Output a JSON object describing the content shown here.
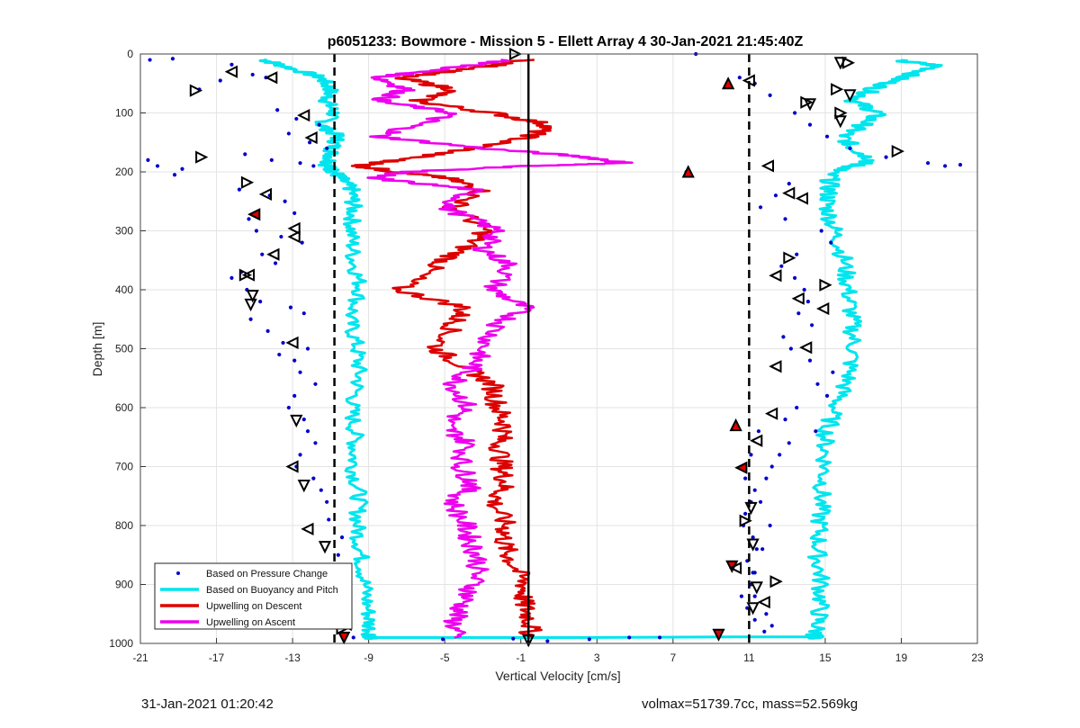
{
  "chart_data": {
    "type": "scatter",
    "title": "p6051233: Bowmore - Mission 5 - Ellett Array 4 30-Jan-2021 21:45:40Z",
    "xlabel": "Vertical Velocity [cm/s]",
    "ylabel": "Depth [m]",
    "xlim": [
      -21,
      23
    ],
    "ylim": [
      0,
      1000
    ],
    "y_reversed": true,
    "xticks": [
      "-21",
      "-17",
      "-13",
      "-9",
      "-5",
      "-1",
      "3",
      "7",
      "11",
      "15",
      "19",
      "23"
    ],
    "yticks": [
      "0",
      "100",
      "200",
      "300",
      "400",
      "500",
      "600",
      "700",
      "800",
      "900",
      "1000"
    ],
    "grid": true,
    "legend_position": "bottom-left",
    "reference_lines": [
      {
        "style": "dashed",
        "x": -10.8
      },
      {
        "style": "solid",
        "x": -0.6
      },
      {
        "style": "dashed",
        "x": 11
      }
    ],
    "series": [
      {
        "name": "Based on Pressure Change",
        "kind": "points",
        "color": "#0000cc",
        "x": [
          -20.5,
          -19.3,
          -16.2,
          -15.1,
          -17.9,
          -16.8,
          -14.4,
          -13.8,
          -12.8,
          -11.6,
          -13.2,
          -12.1,
          -11.2,
          -15.5,
          -14.1,
          -12.6,
          -11.9,
          -18.8,
          -20.6,
          -20.1,
          -19.2,
          -15.8,
          -14.2,
          -13.4,
          -12.9,
          -15.3,
          -14.9,
          -13.6,
          -12.5,
          -14.6,
          -13.9,
          -15.7,
          -16.2,
          -15.4,
          -14.7,
          -13.1,
          -12.4,
          -15.2,
          -14.3,
          -13.5,
          -12.2,
          -13.7,
          -12.9,
          -12.6,
          -11.8,
          -12.9,
          -13.2,
          -12.4,
          -12.2,
          -11.8,
          -12.6,
          -12.8,
          -11.9,
          -11.5,
          -11.2,
          -11.1,
          -10.4,
          -10.6,
          -10.2,
          -10.1,
          -9.8,
          -5.1,
          -1.4,
          0.4,
          2.6,
          4.7,
          6.3,
          8.2,
          7.7,
          10.5,
          11.3,
          12.1,
          13.4,
          14.2,
          15.1,
          16.3,
          18.2,
          20.4,
          21.3,
          22.1,
          13.1,
          12.4,
          11.6,
          12.9,
          14.8,
          15.3,
          13.5,
          12.7,
          13.4,
          13.9,
          14.1,
          13.6,
          14.3,
          12.8,
          13.2,
          14.2,
          15.4,
          14.6,
          15.1,
          13.5,
          12.9,
          14.5,
          13.1,
          12.6,
          12.2,
          11.9,
          11.3,
          11.1,
          10.8,
          10.7,
          11.2,
          11.4,
          10.9,
          11.3,
          11.1,
          10.6,
          10.9,
          11.3,
          11.8,
          11.5,
          11.1,
          10.8,
          11.6,
          12.1,
          11.7,
          11.2,
          11.3,
          11.9,
          12.2
        ],
        "y": [
          10,
          8,
          18,
          35,
          60,
          45,
          40,
          95,
          110,
          120,
          135,
          150,
          160,
          170,
          180,
          185,
          190,
          195,
          180,
          190,
          205,
          230,
          240,
          250,
          270,
          280,
          300,
          310,
          320,
          340,
          355,
          370,
          380,
          400,
          420,
          430,
          440,
          450,
          470,
          490,
          500,
          510,
          520,
          540,
          560,
          580,
          600,
          620,
          640,
          660,
          680,
          700,
          720,
          740,
          760,
          790,
          820,
          850,
          900,
          950,
          990,
          993,
          992,
          996,
          993,
          990,
          990,
          0,
          200,
          40,
          50,
          70,
          100,
          120,
          140,
          160,
          175,
          185,
          190,
          188,
          220,
          240,
          260,
          280,
          300,
          320,
          340,
          360,
          380,
          400,
          420,
          440,
          460,
          480,
          500,
          520,
          540,
          560,
          580,
          600,
          620,
          640,
          660,
          680,
          700,
          720,
          740,
          760,
          780,
          800,
          820,
          840,
          860,
          880,
          900,
          920,
          940,
          960,
          980,
          640,
          680,
          720,
          760,
          800,
          840,
          880,
          920,
          950,
          970
        ]
      },
      {
        "name": "Based on Buoyancy and Pitch",
        "kind": "line",
        "color": "#00e5ee"
      },
      {
        "name": "Upwelling on Descent",
        "kind": "line",
        "color": "#dd0000"
      },
      {
        "name": "Upwelling on Ascent",
        "kind": "line",
        "color": "#ee00ee"
      }
    ],
    "profiles": [
      {
        "series": "Based on Buoyancy and Pitch",
        "y": [
          10,
          20,
          40,
          60,
          80,
          100,
          120,
          140,
          160,
          180,
          190,
          200,
          210,
          230,
          260,
          300,
          350,
          400,
          450,
          500,
          550,
          600,
          650,
          700,
          750,
          800,
          850,
          900,
          950,
          985,
          992
        ],
        "x": [
          -14.5,
          -13.5,
          -11.5,
          -11,
          -11.2,
          -10.8,
          -11.5,
          -10.6,
          -10.9,
          -11,
          -11.2,
          -10.8,
          -10.5,
          -9.9,
          -9.8,
          -9.9,
          -9.8,
          -9.4,
          -10,
          -9.6,
          -9.5,
          -9.9,
          -9.7,
          -9.8,
          -9.5,
          -9.6,
          -9.4,
          -9.2,
          -9.0,
          -8.9,
          -8.8
        ],
        "amp": 0.45
      },
      {
        "series": "Based on Buoyancy and Pitch",
        "y": [
          10,
          20,
          40,
          60,
          80,
          100,
          120,
          140,
          160,
          180,
          190,
          200,
          230,
          260,
          300,
          350,
          400,
          450,
          500,
          550,
          600,
          650,
          700,
          750,
          800,
          850,
          900,
          950,
          985,
          992
        ],
        "x": [
          18.5,
          21,
          19,
          17.5,
          16.5,
          17.8,
          17,
          15.9,
          16.5,
          17.5,
          16.5,
          15.3,
          15.2,
          15.1,
          15.5,
          16,
          16.2,
          16.4,
          16.5,
          16.2,
          15.5,
          15,
          15,
          14.8,
          14.7,
          14.6,
          14.8,
          14.7,
          14.5,
          14.4
        ],
        "amp": 0.5
      },
      {
        "series": "Based on Buoyancy and Pitch",
        "y": [
          990,
          990,
          989,
          989
        ],
        "x": [
          -9,
          1,
          10,
          14.5
        ],
        "amp": 0
      },
      {
        "series": "Upwelling on Descent",
        "y": [
          10,
          25,
          40,
          60,
          80,
          100,
          120,
          140,
          160,
          180,
          190,
          200,
          210,
          230,
          260,
          300,
          330,
          360,
          400,
          430,
          460,
          500,
          530,
          560,
          600,
          630,
          660,
          700,
          730,
          760,
          800,
          830,
          860,
          900,
          930,
          960,
          990
        ],
        "x": [
          -0.8,
          -3.5,
          -7.5,
          -4.5,
          -6.5,
          -2.5,
          0.5,
          -0.5,
          -3.5,
          -7.5,
          -9.5,
          -7.5,
          -5,
          -3,
          -4.5,
          -2.8,
          -4,
          -5.5,
          -7.5,
          -4,
          -4.5,
          -5.5,
          -4,
          -2.5,
          -2.2,
          -1.8,
          -2.1,
          -2,
          -1.8,
          -2.4,
          -1.8,
          -1.9,
          -1.5,
          -0.8,
          -0.9,
          -0.5,
          -0.5
        ],
        "amp": 0.6
      },
      {
        "series": "Upwelling on Ascent",
        "y": [
          10,
          25,
          40,
          60,
          80,
          100,
          120,
          140,
          160,
          175,
          185,
          190,
          200,
          210,
          230,
          260,
          300,
          330,
          360,
          400,
          430,
          460,
          500,
          530,
          560,
          600,
          630,
          660,
          700,
          730,
          760,
          800,
          830,
          860,
          900,
          930,
          960,
          990
        ],
        "x": [
          -1.5,
          -5,
          -8.5,
          -7,
          -8.5,
          -4.5,
          -6.5,
          -8.5,
          -3,
          2.5,
          4.5,
          -0.5,
          -7,
          -9,
          -3.5,
          -5,
          -2.2,
          -3,
          -1.5,
          -2.5,
          -0.8,
          -2.2,
          -3,
          -3.5,
          -4.5,
          -3.8,
          -5,
          -3.8,
          -4.2,
          -3.5,
          -4.6,
          -3.9,
          -3.6,
          -3.2,
          -3.5,
          -4,
          -4.5,
          -4.5
        ],
        "amp": 0.6
      }
    ],
    "markers": [
      {
        "x": -16.2,
        "y": 30,
        "dir": "left",
        "fill": "none"
      },
      {
        "x": -14.1,
        "y": 40,
        "dir": "left",
        "fill": "none"
      },
      {
        "x": -18.1,
        "y": 62,
        "dir": "right",
        "fill": "none"
      },
      {
        "x": -12.4,
        "y": 104,
        "dir": "left",
        "fill": "none"
      },
      {
        "x": -12.0,
        "y": 142,
        "dir": "left",
        "fill": "none"
      },
      {
        "x": -17.8,
        "y": 175,
        "dir": "right",
        "fill": "none"
      },
      {
        "x": -15.4,
        "y": 218,
        "dir": "right",
        "fill": "none"
      },
      {
        "x": -14.4,
        "y": 238,
        "dir": "left",
        "fill": "none"
      },
      {
        "x": -15.0,
        "y": 272,
        "dir": "left",
        "fill": "red"
      },
      {
        "x": -12.9,
        "y": 296,
        "dir": "left",
        "fill": "none"
      },
      {
        "x": -12.9,
        "y": 310,
        "dir": "left",
        "fill": "none"
      },
      {
        "x": -14.0,
        "y": 340,
        "dir": "left",
        "fill": "none"
      },
      {
        "x": -15.3,
        "y": 375,
        "dir": "left",
        "fill": "none"
      },
      {
        "x": -15.5,
        "y": 375,
        "dir": "right",
        "fill": "none"
      },
      {
        "x": -15.1,
        "y": 410,
        "dir": "down",
        "fill": "none"
      },
      {
        "x": -15.2,
        "y": 425,
        "dir": "down",
        "fill": "none"
      },
      {
        "x": -13.0,
        "y": 490,
        "dir": "left",
        "fill": "none"
      },
      {
        "x": -12.8,
        "y": 622,
        "dir": "down",
        "fill": "none"
      },
      {
        "x": -13.0,
        "y": 700,
        "dir": "left",
        "fill": "none"
      },
      {
        "x": -12.4,
        "y": 732,
        "dir": "down",
        "fill": "none"
      },
      {
        "x": -12.2,
        "y": 806,
        "dir": "left",
        "fill": "none"
      },
      {
        "x": -11.3,
        "y": 836,
        "dir": "down",
        "fill": "none"
      },
      {
        "x": -11.0,
        "y": 885,
        "dir": "left",
        "fill": "none"
      },
      {
        "x": -10.8,
        "y": 940,
        "dir": "down",
        "fill": "none"
      },
      {
        "x": -10.2,
        "y": 968,
        "dir": "left",
        "fill": "none"
      },
      {
        "x": -10.4,
        "y": 975,
        "dir": "right",
        "fill": "none"
      },
      {
        "x": -10.3,
        "y": 990,
        "dir": "down",
        "fill": "red"
      },
      {
        "x": -1.3,
        "y": 0,
        "dir": "right",
        "fill": "none"
      },
      {
        "x": -0.6,
        "y": 995,
        "dir": "down",
        "fill": "none"
      },
      {
        "x": 7.8,
        "y": 200,
        "dir": "up",
        "fill": "red"
      },
      {
        "x": 9.9,
        "y": 50,
        "dir": "up",
        "fill": "red"
      },
      {
        "x": 11.0,
        "y": 45,
        "dir": "left",
        "fill": "none"
      },
      {
        "x": 15.8,
        "y": 15,
        "dir": "down",
        "fill": "none"
      },
      {
        "x": 16.2,
        "y": 15,
        "dir": "right",
        "fill": "none"
      },
      {
        "x": 15.6,
        "y": 60,
        "dir": "right",
        "fill": "none"
      },
      {
        "x": 16.3,
        "y": 70,
        "dir": "down",
        "fill": "none"
      },
      {
        "x": 14.0,
        "y": 82,
        "dir": "right",
        "fill": "none"
      },
      {
        "x": 14.2,
        "y": 85,
        "dir": "down",
        "fill": "none"
      },
      {
        "x": 15.8,
        "y": 100,
        "dir": "right",
        "fill": "none"
      },
      {
        "x": 15.8,
        "y": 114,
        "dir": "down",
        "fill": "none"
      },
      {
        "x": 12.0,
        "y": 190,
        "dir": "left",
        "fill": "none"
      },
      {
        "x": 18.8,
        "y": 165,
        "dir": "right",
        "fill": "none"
      },
      {
        "x": 13.1,
        "y": 236,
        "dir": "left",
        "fill": "none"
      },
      {
        "x": 13.8,
        "y": 245,
        "dir": "left",
        "fill": "none"
      },
      {
        "x": 13.1,
        "y": 346,
        "dir": "right",
        "fill": "none"
      },
      {
        "x": 12.4,
        "y": 376,
        "dir": "left",
        "fill": "none"
      },
      {
        "x": 15.0,
        "y": 392,
        "dir": "right",
        "fill": "none"
      },
      {
        "x": 13.6,
        "y": 415,
        "dir": "left",
        "fill": "none"
      },
      {
        "x": 14.9,
        "y": 432,
        "dir": "left",
        "fill": "none"
      },
      {
        "x": 14.0,
        "y": 498,
        "dir": "left",
        "fill": "none"
      },
      {
        "x": 12.4,
        "y": 530,
        "dir": "left",
        "fill": "none"
      },
      {
        "x": 12.2,
        "y": 610,
        "dir": "left",
        "fill": "none"
      },
      {
        "x": 10.3,
        "y": 630,
        "dir": "up",
        "fill": "red"
      },
      {
        "x": 11.4,
        "y": 656,
        "dir": "left",
        "fill": "none"
      },
      {
        "x": 10.6,
        "y": 702,
        "dir": "left",
        "fill": "red"
      },
      {
        "x": 11.1,
        "y": 770,
        "dir": "down",
        "fill": "none"
      },
      {
        "x": 10.8,
        "y": 792,
        "dir": "right",
        "fill": "none"
      },
      {
        "x": 11.2,
        "y": 832,
        "dir": "down",
        "fill": "none"
      },
      {
        "x": 10.1,
        "y": 869,
        "dir": "down",
        "fill": "red"
      },
      {
        "x": 10.3,
        "y": 872,
        "dir": "left",
        "fill": "none"
      },
      {
        "x": 12.4,
        "y": 895,
        "dir": "right",
        "fill": "none"
      },
      {
        "x": 11.4,
        "y": 905,
        "dir": "down",
        "fill": "none"
      },
      {
        "x": 11.8,
        "y": 930,
        "dir": "left",
        "fill": "none"
      },
      {
        "x": 11.2,
        "y": 940,
        "dir": "down",
        "fill": "none"
      },
      {
        "x": 9.4,
        "y": 985,
        "dir": "down",
        "fill": "red"
      }
    ]
  },
  "footer": {
    "timestamp": "31-Jan-2021 01:20:42",
    "stats": "volmax=51739.7cc, mass=52.569kg"
  }
}
